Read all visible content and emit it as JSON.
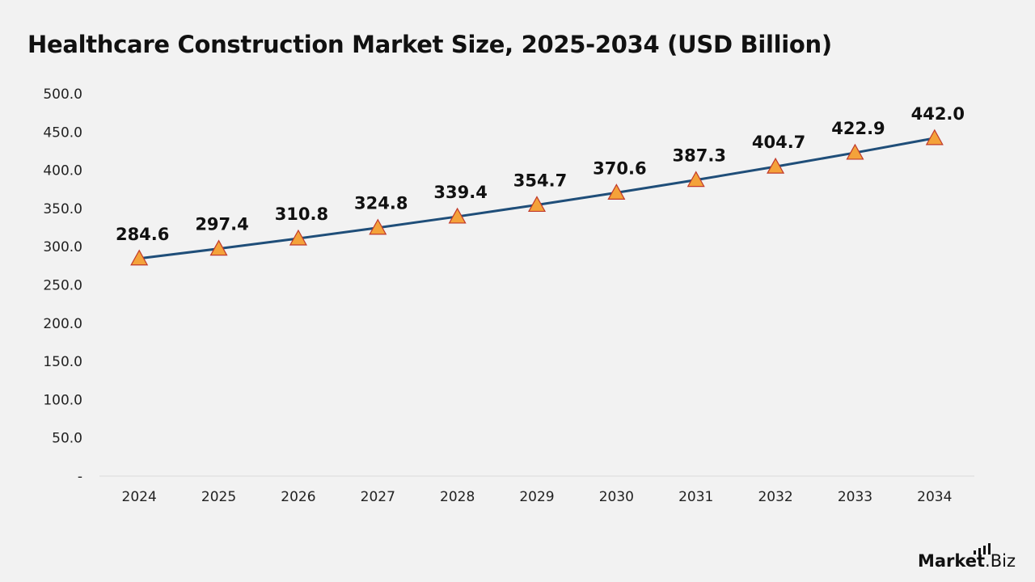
{
  "chart_data": {
    "type": "line",
    "title": "Healthcare Construction Market Size, 2025-2034 (USD Billion)",
    "xlabel": "",
    "ylabel": "",
    "categories": [
      "2024",
      "2025",
      "2026",
      "2027",
      "2028",
      "2029",
      "2030",
      "2031",
      "2032",
      "2033",
      "2034"
    ],
    "series": [
      {
        "values": [
          284.6,
          297.4,
          310.8,
          324.8,
          339.4,
          354.7,
          370.6,
          387.3,
          404.7,
          422.9,
          442.0
        ],
        "data_labels": [
          "284.6",
          "297.4",
          "310.8",
          "324.8",
          "339.4",
          "354.7",
          "370.6",
          "387.3",
          "404.7",
          "422.9",
          "442.0"
        ],
        "line_color": "#1f4e79",
        "marker": "triangle",
        "marker_color": "#f4a23a",
        "marker_edge_color": "#c0392b"
      }
    ],
    "ylim": [
      0,
      500
    ],
    "yticks": [
      0,
      50,
      100,
      150,
      200,
      250,
      300,
      350,
      400,
      450,
      500
    ],
    "ytick_labels": [
      "-",
      "50.0",
      "100.0",
      "150.0",
      "200.0",
      "250.0",
      "300.0",
      "350.0",
      "400.0",
      "450.0",
      "500.0"
    ],
    "grid": false,
    "legend": "none"
  },
  "brand": {
    "name": "Market",
    "suffix": ".Biz"
  }
}
